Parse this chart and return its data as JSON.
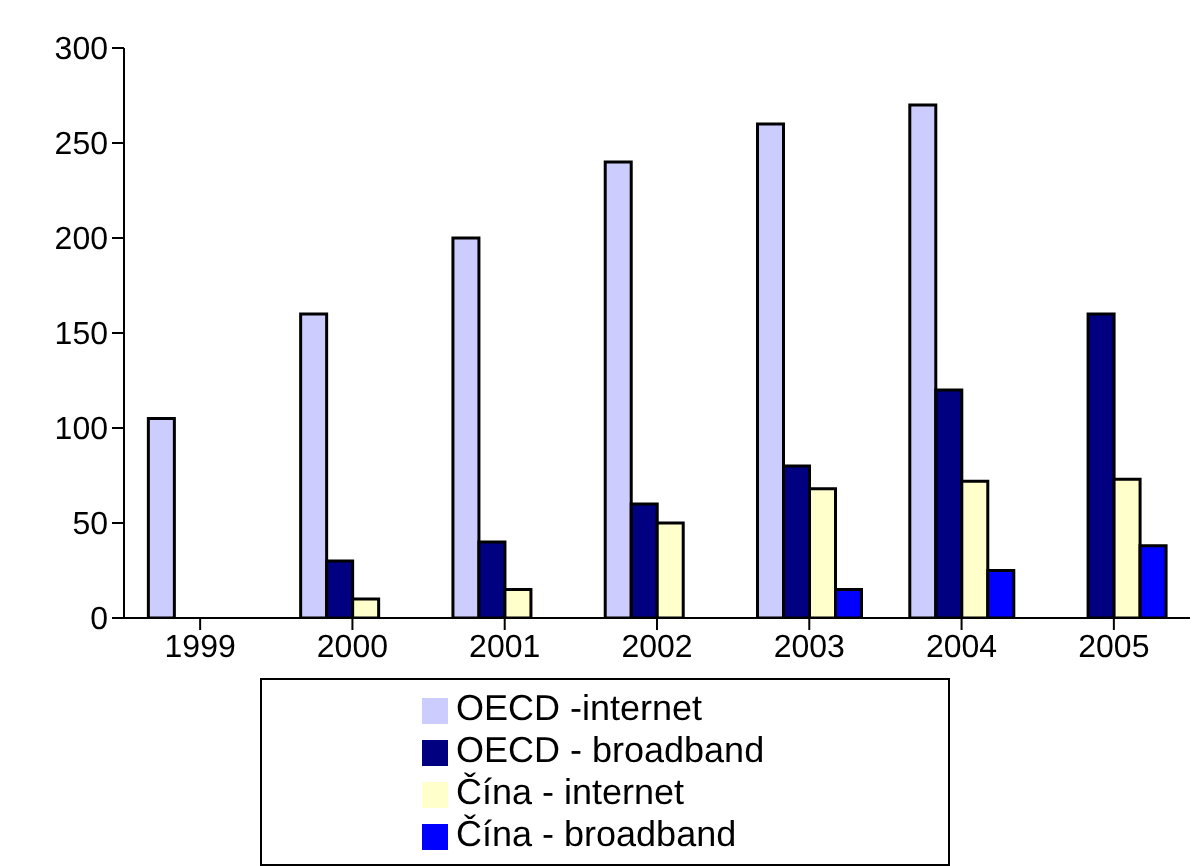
{
  "chart_data": {
    "type": "bar",
    "categories": [
      "1999",
      "2000",
      "2001",
      "2002",
      "2003",
      "2004",
      "2005"
    ],
    "series": [
      {
        "name": "OECD -internet",
        "color": "#ccccff",
        "values": [
          105,
          160,
          200,
          240,
          260,
          270,
          null
        ]
      },
      {
        "name": "OECD - broadband",
        "color": "#000080",
        "values": [
          null,
          30,
          40,
          60,
          80,
          120,
          160
        ]
      },
      {
        "name": "Čína - internet",
        "color": "#ffffcc",
        "values": [
          null,
          10,
          15,
          50,
          68,
          72,
          73
        ]
      },
      {
        "name": "Čína - broadband",
        "color": "#0000ff",
        "values": [
          null,
          null,
          null,
          null,
          15,
          25,
          38
        ]
      }
    ],
    "ylim": [
      0,
      300
    ],
    "yticks": [
      0,
      50,
      100,
      150,
      200,
      250,
      300
    ],
    "grid": false,
    "legend": "bottom"
  }
}
